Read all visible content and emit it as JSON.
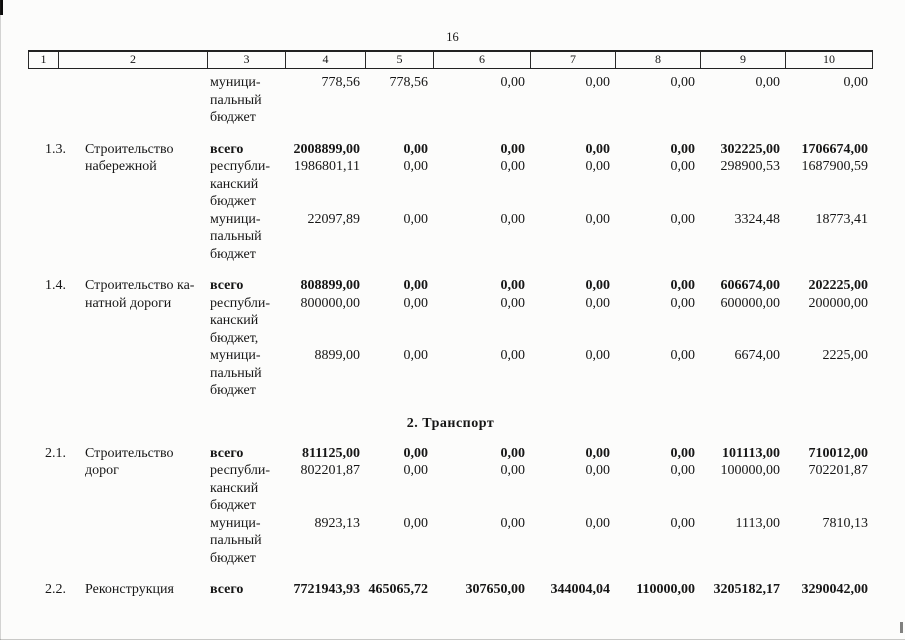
{
  "page_number": "16",
  "table": {
    "header_columns": [
      "1",
      "2",
      "3",
      "4",
      "5",
      "6",
      "7",
      "8",
      "9",
      "10"
    ],
    "rows": [
      {
        "num": "",
        "name": [],
        "subrows": [
          {
            "label": [
              "муници-",
              "пальный",
              "бюджет"
            ],
            "bold": false,
            "values": [
              "778,56",
              "778,56",
              "0,00",
              "0,00",
              "0,00",
              "0,00",
              "0,00"
            ]
          }
        ]
      },
      {
        "num": "1.3.",
        "name": [
          "Строительство",
          "набережной"
        ],
        "subrows": [
          {
            "label": [
              "всего"
            ],
            "bold": true,
            "values": [
              "2008899,00",
              "0,00",
              "0,00",
              "0,00",
              "0,00",
              "302225,00",
              "1706674,00"
            ]
          },
          {
            "label": [
              "республи-",
              "канский",
              "бюджет"
            ],
            "bold": false,
            "values": [
              "1986801,11",
              "0,00",
              "0,00",
              "0,00",
              "0,00",
              "298900,53",
              "1687900,59"
            ]
          },
          {
            "label": [
              "муници-",
              "пальный",
              "бюджет"
            ],
            "bold": false,
            "values": [
              "22097,89",
              "0,00",
              "0,00",
              "0,00",
              "0,00",
              "3324,48",
              "18773,41"
            ]
          }
        ]
      },
      {
        "num": "1.4.",
        "name": [
          "Строительство ка-",
          "натной дороги"
        ],
        "subrows": [
          {
            "label": [
              "всего"
            ],
            "bold": true,
            "values": [
              "808899,00",
              "0,00",
              "0,00",
              "0,00",
              "0,00",
              "606674,00",
              "202225,00"
            ]
          },
          {
            "label": [
              "республи-",
              "канский",
              "бюджет,"
            ],
            "bold": false,
            "values": [
              "800000,00",
              "0,00",
              "0,00",
              "0,00",
              "0,00",
              "600000,00",
              "200000,00"
            ]
          },
          {
            "label": [
              "муници-",
              "пальный",
              "бюджет"
            ],
            "bold": false,
            "values": [
              "8899,00",
              "0,00",
              "0,00",
              "0,00",
              "0,00",
              "6674,00",
              "2225,00"
            ]
          }
        ]
      },
      {
        "section": "2. Транспорт"
      },
      {
        "num": "2.1.",
        "name": [
          "Строительство",
          "дорог"
        ],
        "subrows": [
          {
            "label": [
              "всего"
            ],
            "bold": true,
            "values": [
              "811125,00",
              "0,00",
              "0,00",
              "0,00",
              "0,00",
              "101113,00",
              "710012,00"
            ]
          },
          {
            "label": [
              "республи-",
              "канский",
              "бюджет"
            ],
            "bold": false,
            "values": [
              "802201,87",
              "0,00",
              "0,00",
              "0,00",
              "0,00",
              "100000,00",
              "702201,87"
            ]
          },
          {
            "label": [
              "муници-",
              "пальный",
              "бюджет"
            ],
            "bold": false,
            "values": [
              "8923,13",
              "0,00",
              "0,00",
              "0,00",
              "0,00",
              "1113,00",
              "7810,13"
            ]
          }
        ]
      },
      {
        "num": "2.2.",
        "name": [
          "Реконструкция"
        ],
        "subrows": [
          {
            "label": [
              "всего"
            ],
            "bold": true,
            "values": [
              "7721943,93",
              "465065,72",
              "307650,00",
              "344004,04",
              "110000,00",
              "3205182,17",
              "3290042,00"
            ]
          }
        ]
      }
    ]
  }
}
